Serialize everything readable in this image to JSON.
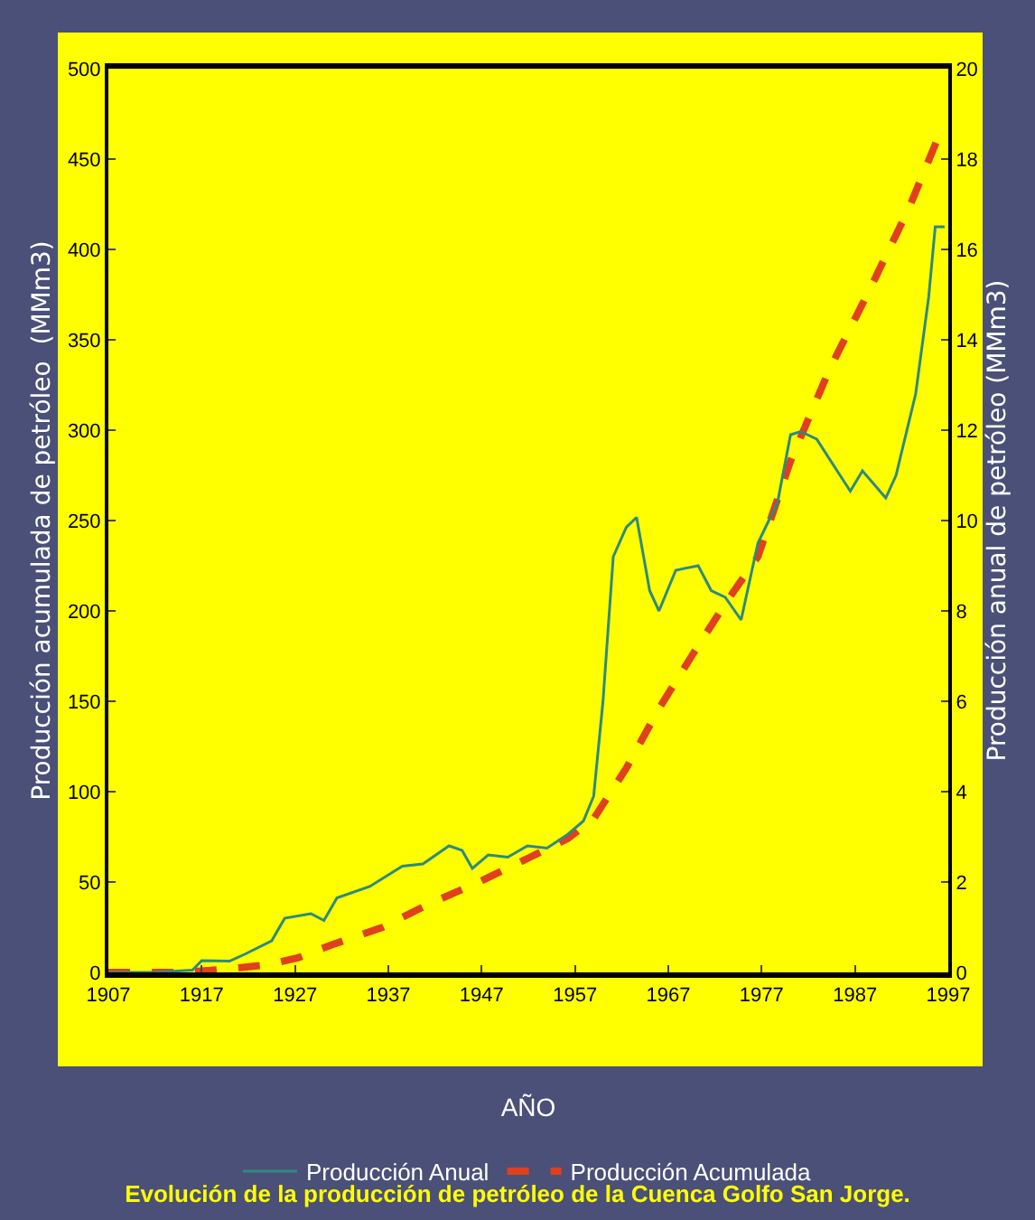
{
  "chart_data": {
    "type": "line",
    "title": "Evolución de la producción de petróleo de la Cuenca Golfo San Jorge.",
    "xlabel": "AÑO",
    "ylabel": "Producción acumulada de petróleo  (MMm3)",
    "y2label": "Producción anual de petróleo (MMm3)",
    "xlim": [
      1907,
      1997
    ],
    "xticks": [
      1907,
      1917,
      1927,
      1937,
      1947,
      1957,
      1967,
      1977,
      1987,
      1997
    ],
    "ylim": [
      0,
      500
    ],
    "yticks": [
      0,
      50,
      100,
      150,
      200,
      250,
      300,
      350,
      400,
      450,
      500
    ],
    "y2lim": [
      0,
      20
    ],
    "y2ticks": [
      0,
      2,
      4,
      6,
      8,
      10,
      12,
      14,
      16,
      18,
      20
    ],
    "grid": false,
    "legend": "bottom",
    "marker": "none",
    "series": [
      {
        "name": "Producción Anual",
        "color": "#2e8a7e",
        "axis": "y2",
        "line_style": "solid",
        "x": [
          1907,
          1912,
          1916,
          1917,
          1920,
          1921.6,
          1924.5,
          1925.9,
          1928.7,
          1930.1,
          1931.5,
          1935,
          1938.5,
          1940.7,
          1943.5,
          1944.9,
          1946,
          1947.7,
          1949.8,
          1951.9,
          1954,
          1956.2,
          1957.9,
          1959,
          1960,
          1961.1,
          1962.5,
          1963.6,
          1965,
          1966,
          1967.8,
          1970.2,
          1971.6,
          1973.1,
          1974.8,
          1976.6,
          1978.7,
          1980.1,
          1981.2,
          1982.9,
          1985.4,
          1986.5,
          1987.8,
          1990.3,
          1991.4,
          1993.5,
          1994.9,
          1995.6,
          1996.6
        ],
        "values": [
          0,
          0,
          0.05,
          0.26,
          0.25,
          0.4,
          0.7,
          1.2,
          1.3,
          1.15,
          1.65,
          1.9,
          2.35,
          2.4,
          2.8,
          2.7,
          2.3,
          2.6,
          2.55,
          2.8,
          2.75,
          3.05,
          3.35,
          3.9,
          6.0,
          9.2,
          9.85,
          10.07,
          8.45,
          8.0,
          8.9,
          9.0,
          8.45,
          8.3,
          7.8,
          9.5,
          10.4,
          11.9,
          11.97,
          11.8,
          11.0,
          10.65,
          11.1,
          10.5,
          11.0,
          12.8,
          14.95,
          16.5,
          16.5
        ]
      },
      {
        "name": "Producción Acumulada",
        "color": "#e0401c",
        "axis": "y",
        "line_style": "dashed",
        "x": [
          1907,
          1915,
          1920,
          1923.8,
          1927.3,
          1930.8,
          1936.4,
          1941.4,
          1946.3,
          1951.9,
          1956.2,
          1959,
          1962.5,
          1966,
          1969.5,
          1973.1,
          1976.6,
          1980.1,
          1984.3,
          1988.5,
          1992.8,
          1996
        ],
        "values": [
          0,
          0,
          2,
          4,
          8,
          15,
          25,
          38,
          49,
          63,
          74,
          85,
          113,
          146,
          175,
          204,
          230,
          283,
          334,
          377,
          423,
          463
        ]
      }
    ]
  }
}
